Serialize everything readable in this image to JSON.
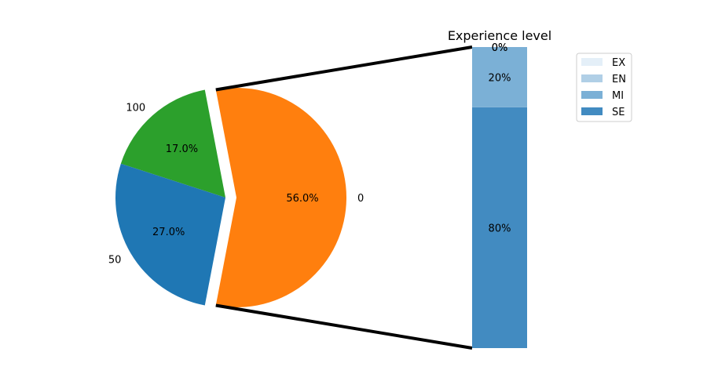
{
  "chart_data": [
    {
      "type": "pie",
      "slices": [
        {
          "label": "0",
          "value": 56.0,
          "pct_label": "56.0%",
          "color": "#ff7f0e",
          "explode": true
        },
        {
          "label": "100",
          "value": 17.0,
          "pct_label": "17.0%",
          "color": "#2ca02c",
          "explode": false
        },
        {
          "label": "50",
          "value": 27.0,
          "pct_label": "27.0%",
          "color": "#1f77b4",
          "explode": false
        }
      ]
    },
    {
      "type": "bar",
      "stacked": true,
      "title": "Experience level",
      "legend_position": "top-right",
      "segments": [
        {
          "name": "SE",
          "value": 80,
          "pct_label": "80%",
          "color": "#428bc1"
        },
        {
          "name": "MI",
          "value": 20,
          "pct_label": "20%",
          "color": "#7bb0d6"
        },
        {
          "name": "EN",
          "value": 0,
          "pct_label": "0%",
          "color": "#b0cfe6"
        },
        {
          "name": "EX",
          "value": 0,
          "pct_label": "0%",
          "color": "#e4eff8"
        }
      ],
      "legend": [
        "EX",
        "EN",
        "MI",
        "SE"
      ]
    }
  ]
}
